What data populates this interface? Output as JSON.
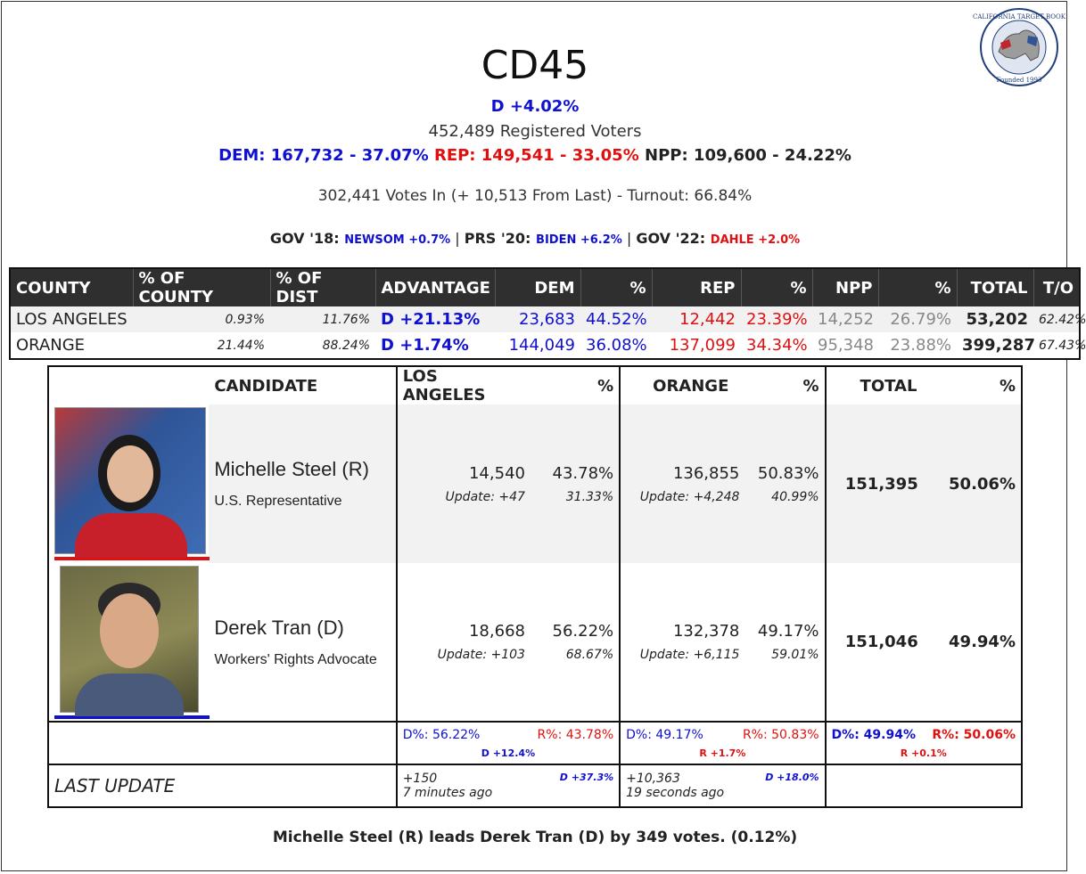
{
  "title": "CD45",
  "logo": {
    "text_top": "CALIFORNIA TARGET BOOK",
    "text_bottom": "Founded 1993"
  },
  "advantage": "D +4.02%",
  "registered": "452,489 Registered Voters",
  "party": {
    "dem": "DEM: 167,732 - 37.07%",
    "rep": "REP: 149,541 - 33.05%",
    "npp": "NPP: 109,600 - 24.22%"
  },
  "votes_in": "302,441 Votes In (+ 10,513 From Last) - Turnout: 66.84%",
  "history": {
    "gov18_label": "GOV '18:",
    "gov18_val": "NEWSOM +0.7%",
    "sep1": " | ",
    "prs20_label": "PRS '20:",
    "prs20_val": "BIDEN +6.2%",
    "sep2": " | ",
    "gov22_label": "GOV '22:",
    "gov22_val": "DAHLE +2.0%"
  },
  "county_table": {
    "headers": [
      "COUNTY",
      "% OF COUNTY",
      "% OF DIST",
      "ADVANTAGE",
      "DEM",
      "%",
      "REP",
      "%",
      "NPP",
      "%",
      "TOTAL",
      "T/O"
    ],
    "rows": [
      {
        "county": "LOS ANGELES",
        "pct_county": "0.93%",
        "pct_dist": "11.76%",
        "advantage": "D +21.13%",
        "dem": "23,683",
        "dem_pct": "44.52%",
        "rep": "12,442",
        "rep_pct": "23.39%",
        "npp": "14,252",
        "npp_pct": "26.79%",
        "total": "53,202",
        "to": "62.42%"
      },
      {
        "county": "ORANGE",
        "pct_county": "21.44%",
        "pct_dist": "88.24%",
        "advantage": "D +1.74%",
        "dem": "144,049",
        "dem_pct": "36.08%",
        "rep": "137,099",
        "rep_pct": "34.34%",
        "npp": "95,348",
        "npp_pct": "23.88%",
        "total": "399,287",
        "to": "67.43%"
      }
    ]
  },
  "candidate_table": {
    "headers": {
      "candidate": "CANDIDATE",
      "la": "LOS ANGELES",
      "la_pct": "%",
      "orange": "ORANGE",
      "orange_pct": "%",
      "total": "TOTAL",
      "total_pct": "%"
    },
    "candidates": [
      {
        "name": "Michelle Steel (R)",
        "title": "U.S. Representative",
        "la_votes": "14,540",
        "la_pct": "43.78%",
        "la_update": "Update: +47",
        "la_update_pct": "31.33%",
        "or_votes": "136,855",
        "or_pct": "50.83%",
        "or_update": "Update: +4,248",
        "or_update_pct": "40.99%",
        "total": "151,395",
        "total_pct": "50.06%",
        "party_color": "#e01010"
      },
      {
        "name": "Derek Tran (D)",
        "title": "Workers' Rights Advocate",
        "la_votes": "18,668",
        "la_pct": "56.22%",
        "la_update": "Update: +103",
        "la_update_pct": "68.67%",
        "or_votes": "132,378",
        "or_pct": "49.17%",
        "or_update": "Update: +6,115",
        "or_update_pct": "59.01%",
        "total": "151,046",
        "total_pct": "49.94%",
        "party_color": "#1010d0"
      }
    ],
    "summary": {
      "la_d": "D%: 56.22%",
      "la_r": "R%: 43.78%",
      "la_margin": "D +12.4%",
      "or_d": "D%: 49.17%",
      "or_r": "R%: 50.83%",
      "or_margin": "R +1.7%",
      "tot_d": "D%: 49.94%",
      "tot_r": "R%: 50.06%",
      "tot_margin": "R +0.1%"
    },
    "last_update": {
      "label": "LAST UPDATE",
      "la_votes": "+150",
      "la_margin": "D +37.3%",
      "la_time": "7 minutes ago",
      "or_votes": "+10,363",
      "or_margin": "D +18.0%",
      "or_time": "19 seconds ago"
    }
  },
  "footer": "Michelle Steel (R) leads Derek Tran (D) by 349 votes. (0.12%)"
}
